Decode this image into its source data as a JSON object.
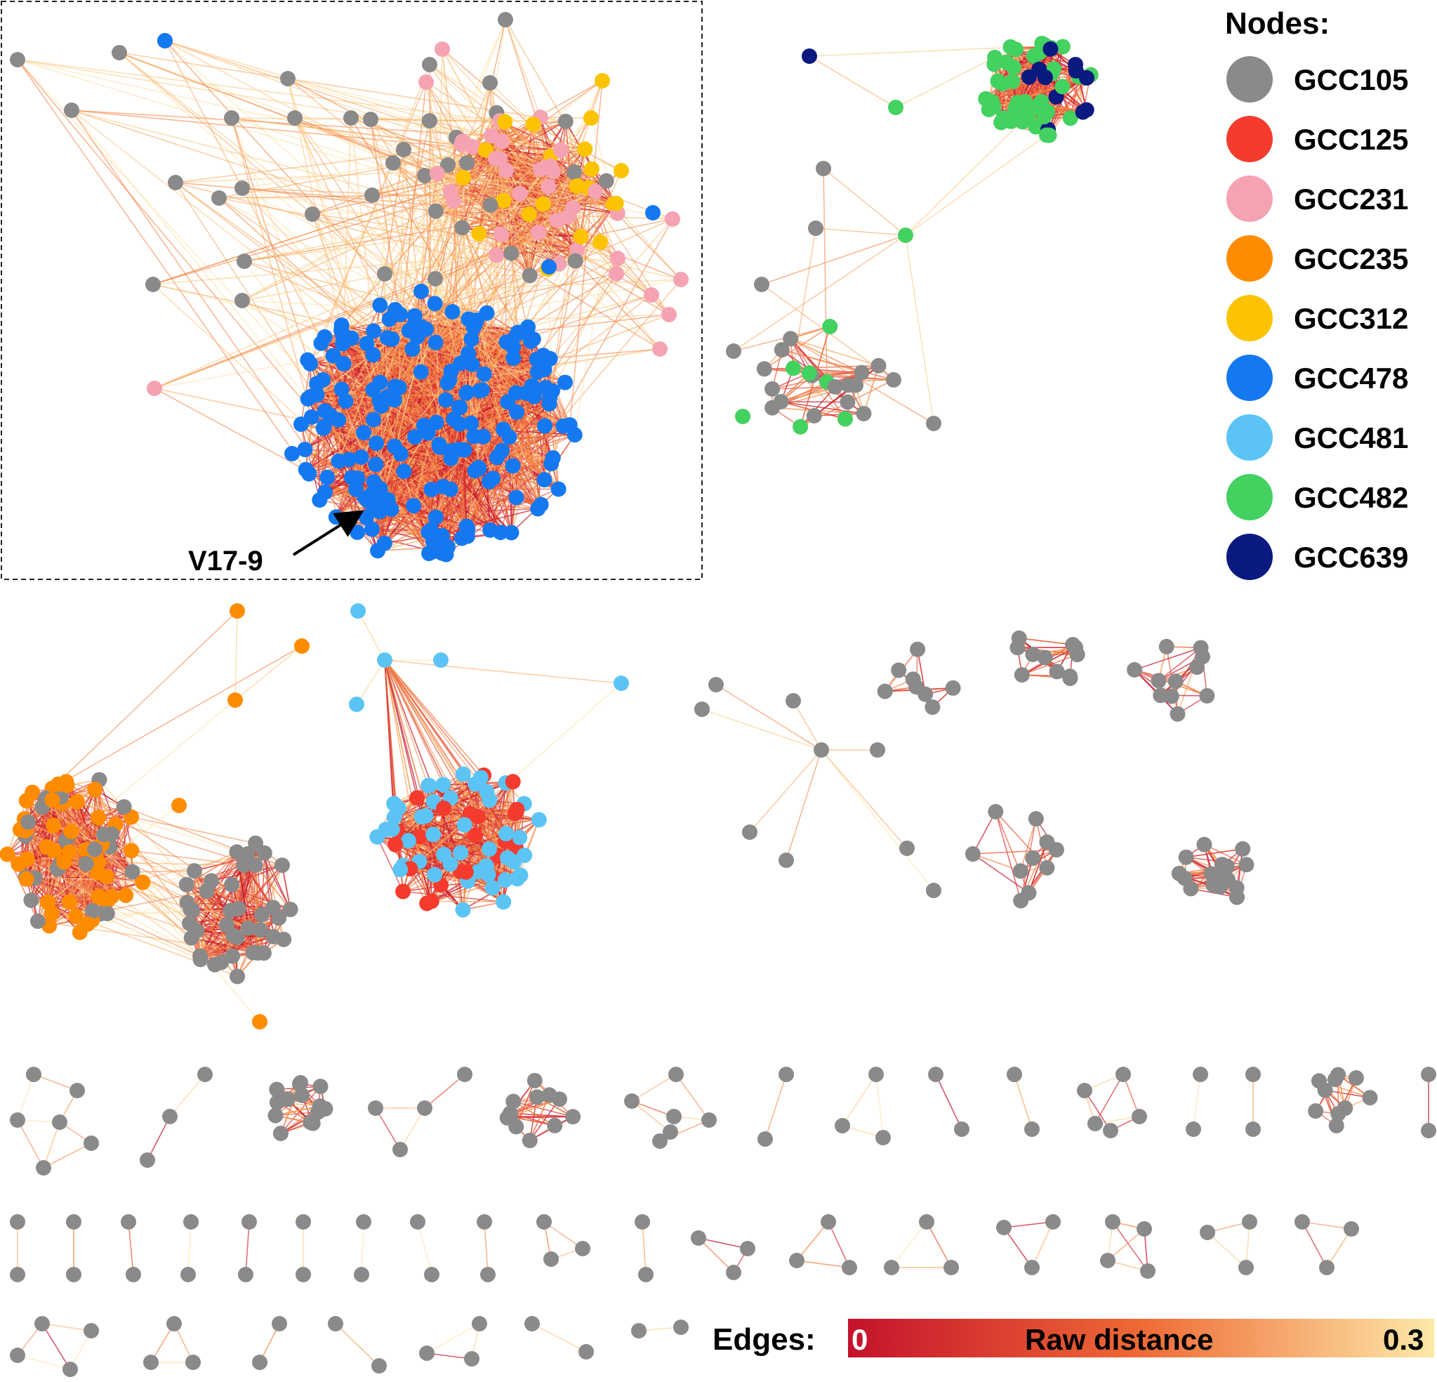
{
  "figure": {
    "description_kind": "network graph of isolates",
    "node_legend": {
      "title": "Nodes:",
      "items": [
        {
          "label": "GCC105",
          "color": "#8a8a8a"
        },
        {
          "label": "GCC125",
          "color": "#f43b2e"
        },
        {
          "label": "GCC231",
          "color": "#f5a3b3"
        },
        {
          "label": "GCC235",
          "color": "#ff8c00"
        },
        {
          "label": "GCC312",
          "color": "#fcc400"
        },
        {
          "label": "GCC478",
          "color": "#1479f0"
        },
        {
          "label": "GCC481",
          "color": "#5bc4f5"
        },
        {
          "label": "GCC482",
          "color": "#43d160"
        },
        {
          "label": "GCC639",
          "color": "#0a1a80"
        }
      ]
    },
    "edge_legend": {
      "title": "Edges:",
      "scale_label": "Raw distance",
      "min_label": "0",
      "max_label": "0.3",
      "color_low": "#c4122b",
      "color_mid": "#ef6a36",
      "color_high": "#fde9a8"
    },
    "annotation": {
      "label": "V17-9",
      "target_group": "GCC478"
    }
  }
}
